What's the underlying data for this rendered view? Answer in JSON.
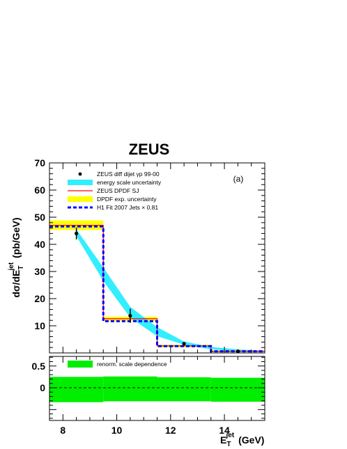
{
  "chart_data": {
    "type": "line",
    "title": "ZEUS",
    "panel_label": "(a)",
    "x_label": {
      "main": "E",
      "sub": "T",
      "sup": "jet",
      "unit": "(GeV)"
    },
    "y_label": {
      "main": "dσ/dE",
      "sub": "T",
      "sup": "jet",
      "unit": "(pb/GeV)"
    },
    "xlim": [
      7.5,
      15.5
    ],
    "ylim": [
      0,
      70
    ],
    "ratio_ylim": [
      -0.75,
      0.72
    ],
    "x_ticks": [
      "8",
      "10",
      "12",
      "14"
    ],
    "y_ticks": [
      "10",
      "20",
      "30",
      "40",
      "50",
      "60",
      "70"
    ],
    "ratio_y_ticks": [
      "0",
      "0.5"
    ],
    "bins": [
      [
        7.5,
        9.5
      ],
      [
        9.5,
        11.5
      ],
      [
        11.5,
        13.5
      ],
      [
        13.5,
        15.5
      ]
    ],
    "series": [
      {
        "name": "ZEUS diff dijet  γp 99-00",
        "kind": "data",
        "color": "#000000",
        "x": [
          8.5,
          10.5,
          12.5,
          14.5
        ],
        "y": [
          44.0,
          13.7,
          3.4,
          0.6
        ],
        "err": [
          2.2,
          2.6,
          0.5,
          0.15
        ]
      },
      {
        "name": "energy scale uncertainty",
        "kind": "band",
        "color": "#33eeff",
        "x": [
          8.5,
          9.5,
          10.5,
          11.5,
          12.5,
          13.5,
          14.5,
          15.5
        ],
        "lo": [
          43.0,
          26.5,
          13.0,
          6.2,
          3.0,
          1.3,
          0.6,
          0.3
        ],
        "hi": [
          45.5,
          31.5,
          17.0,
          9.5,
          4.2,
          2.2,
          1.3,
          0.8
        ]
      },
      {
        "name": "ZEUS DPDF SJ",
        "kind": "hist",
        "color": "#ff0000",
        "values": [
          47.0,
          12.6,
          2.6,
          0.6
        ]
      },
      {
        "name": "DPDF exp. uncertainty",
        "kind": "hist_band",
        "color": "#ffff00",
        "lo": [
          45.3,
          11.8,
          2.1,
          0.3
        ],
        "hi": [
          48.8,
          13.3,
          3.0,
          0.9
        ]
      },
      {
        "name": "H1 Fit 2007 Jets × 0.81",
        "kind": "hist",
        "color": "#0000ff",
        "values": [
          46.6,
          11.7,
          2.5,
          0.6
        ]
      }
    ],
    "ratio_series": [
      {
        "name": "renorm. scale dependence",
        "kind": "hist_band",
        "color": "#00ee00",
        "bins": [
          [
            7.5,
            9.5
          ],
          [
            9.5,
            11.5
          ],
          [
            11.5,
            13.5
          ],
          [
            13.5,
            15.5
          ]
        ],
        "lo": [
          -0.33,
          -0.31,
          -0.31,
          -0.32
        ],
        "hi": [
          0.25,
          0.26,
          0.24,
          0.23
        ]
      }
    ],
    "grid": false,
    "legend_position": "top-left"
  }
}
